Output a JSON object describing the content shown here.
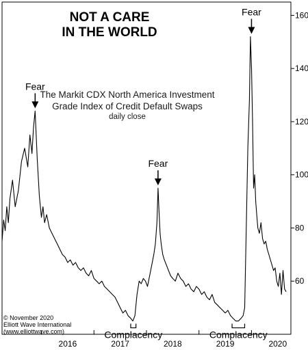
{
  "chart_data": {
    "type": "line",
    "title_lines": [
      "NOT A CARE",
      "IN THE WORLD"
    ],
    "subtitle_lines": [
      "The Markit CDX North America Investment",
      "Grade Index of Credit Default Swaps"
    ],
    "subtitle_small": "daily close",
    "x_range": [
      2015.25,
      2020.75
    ],
    "ylim": [
      40,
      165
    ],
    "y_ticks": [
      60,
      80,
      100,
      120,
      140,
      160
    ],
    "x_ticks": [
      "2016",
      "2017",
      "2018",
      "2019",
      "2020"
    ],
    "annotations": [
      {
        "label": "Fear",
        "x": 2015.88,
        "y": 124,
        "kind": "arrow"
      },
      {
        "label": "Fear",
        "x": 2018.22,
        "y": 95,
        "kind": "arrow"
      },
      {
        "label": "Fear",
        "x": 2020.0,
        "y": 152,
        "kind": "arrow"
      },
      {
        "label": "Complacency",
        "x_start": 2017.7,
        "x_end": 2017.8,
        "y": 45,
        "kind": "bracket"
      },
      {
        "label": "Complacency",
        "x_start": 2019.63,
        "x_end": 2019.87,
        "y": 45,
        "kind": "bracket"
      }
    ],
    "credit_lines": [
      "© November 2020",
      "Elliott Wave International",
      "(www.elliottwave.com)"
    ],
    "series": [
      {
        "x": [
          2015.25,
          2015.28,
          2015.31,
          2015.34,
          2015.37,
          2015.4,
          2015.45,
          2015.5,
          2015.56,
          2015.62,
          2015.68,
          2015.74,
          2015.78,
          2015.82,
          2015.85,
          2015.88,
          2015.92,
          2015.96,
          2016.0,
          2016.03,
          2016.06,
          2016.1,
          2016.15,
          2016.2,
          2016.25,
          2016.3,
          2016.35,
          2016.4,
          2016.45,
          2016.5,
          2016.55,
          2016.6,
          2016.65,
          2016.7,
          2016.75,
          2016.8,
          2016.85,
          2016.9,
          2016.95,
          2017.0,
          2017.05,
          2017.1,
          2017.15,
          2017.2,
          2017.25,
          2017.3,
          2017.35,
          2017.4,
          2017.45,
          2017.5,
          2017.55,
          2017.6,
          2017.65,
          2017.7,
          2017.74,
          2017.78,
          2017.82,
          2017.86,
          2017.9,
          2017.94,
          2017.98,
          2018.02,
          2018.06,
          2018.1,
          2018.14,
          2018.17,
          2018.2,
          2018.22,
          2018.24,
          2018.26,
          2018.28,
          2018.31,
          2018.34,
          2018.38,
          2018.42,
          2018.46,
          2018.5,
          2018.55,
          2018.6,
          2018.65,
          2018.7,
          2018.75,
          2018.8,
          2018.85,
          2018.9,
          2018.95,
          2019.0,
          2019.05,
          2019.1,
          2019.15,
          2019.2,
          2019.25,
          2019.3,
          2019.35,
          2019.4,
          2019.45,
          2019.5,
          2019.55,
          2019.6,
          2019.65,
          2019.7,
          2019.75,
          2019.8,
          2019.84,
          2019.87,
          2019.9,
          2019.93,
          2019.96,
          2019.98,
          2020.0,
          2020.02,
          2020.04,
          2020.06,
          2020.08,
          2020.1,
          2020.12,
          2020.15,
          2020.18,
          2020.21,
          2020.24,
          2020.27,
          2020.3,
          2020.33,
          2020.36,
          2020.39,
          2020.42,
          2020.45,
          2020.48,
          2020.51,
          2020.54,
          2020.57,
          2020.6,
          2020.63,
          2020.66
        ],
        "values": [
          75,
          83,
          79,
          88,
          82,
          91,
          98,
          88,
          94,
          105,
          110,
          103,
          115,
          108,
          118,
          124,
          106,
          92,
          84,
          88,
          82,
          85,
          80,
          78,
          76,
          74,
          72,
          70,
          69,
          67,
          68,
          66,
          67,
          65,
          64,
          65,
          63,
          62,
          64,
          61,
          60,
          59,
          60,
          58,
          57,
          56,
          55,
          54,
          52,
          50,
          48,
          49,
          47,
          46,
          45,
          47,
          55,
          60,
          59,
          61,
          60,
          58,
          62,
          66,
          70,
          74,
          82,
          95,
          86,
          78,
          74,
          70,
          68,
          66,
          64,
          62,
          61,
          60,
          63,
          61,
          60,
          58,
          59,
          57,
          56,
          58,
          57,
          55,
          56,
          54,
          53,
          55,
          52,
          51,
          50,
          49,
          48,
          49,
          47,
          46,
          45,
          45,
          46,
          47,
          50,
          80,
          110,
          128,
          152,
          140,
          120,
          95,
          100,
          90,
          85,
          80,
          78,
          82,
          76,
          74,
          75,
          72,
          70,
          68,
          66,
          64,
          65,
          60,
          58,
          63,
          55,
          64,
          57,
          56
        ]
      }
    ]
  }
}
